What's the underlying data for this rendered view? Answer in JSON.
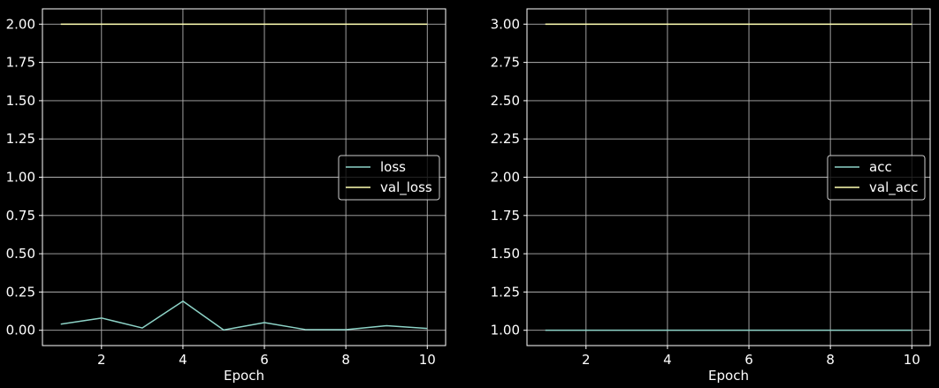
{
  "chart_data": [
    {
      "type": "line",
      "xlabel": "Epoch",
      "ylabel": "",
      "title": "",
      "xlim": [
        0.55,
        10.45
      ],
      "ylim": [
        -0.1,
        2.1
      ],
      "xticks": [
        2,
        4,
        6,
        8,
        10
      ],
      "xtick_labels": [
        "2",
        "4",
        "6",
        "8",
        "10"
      ],
      "yticks": [
        0.0,
        0.25,
        0.5,
        0.75,
        1.0,
        1.25,
        1.5,
        1.75,
        2.0
      ],
      "ytick_labels": [
        "0.00",
        "0.25",
        "0.50",
        "0.75",
        "1.00",
        "1.25",
        "1.50",
        "1.75",
        "2.00"
      ],
      "grid": true,
      "legend_position": "center-right",
      "x": [
        1,
        2,
        3,
        4,
        5,
        6,
        7,
        8,
        9,
        10
      ],
      "series": [
        {
          "name": "loss",
          "color": "#8dd3c7",
          "values": [
            0.04,
            0.08,
            0.015,
            0.19,
            0.002,
            0.05,
            0.005,
            0.004,
            0.03,
            0.012
          ]
        },
        {
          "name": "val_loss",
          "color": "#ffffb3",
          "values": [
            2.0,
            2.0,
            2.0,
            2.0,
            2.0,
            2.0,
            2.0,
            2.0,
            2.0,
            2.0
          ]
        }
      ]
    },
    {
      "type": "line",
      "xlabel": "Epoch",
      "ylabel": "",
      "title": "",
      "xlim": [
        0.55,
        10.45
      ],
      "ylim": [
        0.9,
        3.1
      ],
      "xticks": [
        2,
        4,
        6,
        8,
        10
      ],
      "xtick_labels": [
        "2",
        "4",
        "6",
        "8",
        "10"
      ],
      "yticks": [
        1.0,
        1.25,
        1.5,
        1.75,
        2.0,
        2.25,
        2.5,
        2.75,
        3.0
      ],
      "ytick_labels": [
        "1.00",
        "1.25",
        "1.50",
        "1.75",
        "2.00",
        "2.25",
        "2.50",
        "2.75",
        "3.00"
      ],
      "grid": true,
      "legend_position": "center-right",
      "x": [
        1,
        2,
        3,
        4,
        5,
        6,
        7,
        8,
        9,
        10
      ],
      "series": [
        {
          "name": "acc",
          "color": "#8dd3c7",
          "values": [
            1.0,
            1.0,
            1.0,
            1.0,
            1.0,
            1.0,
            1.0,
            1.0,
            1.0,
            1.0
          ]
        },
        {
          "name": "val_acc",
          "color": "#ffffb3",
          "values": [
            3.0,
            3.0,
            3.0,
            3.0,
            3.0,
            3.0,
            3.0,
            3.0,
            3.0,
            3.0
          ]
        }
      ]
    }
  ],
  "colors": {
    "background": "#000000",
    "grid": "#b0b0b0",
    "axes_edge": "#ffffff",
    "text": "#ffffff"
  }
}
